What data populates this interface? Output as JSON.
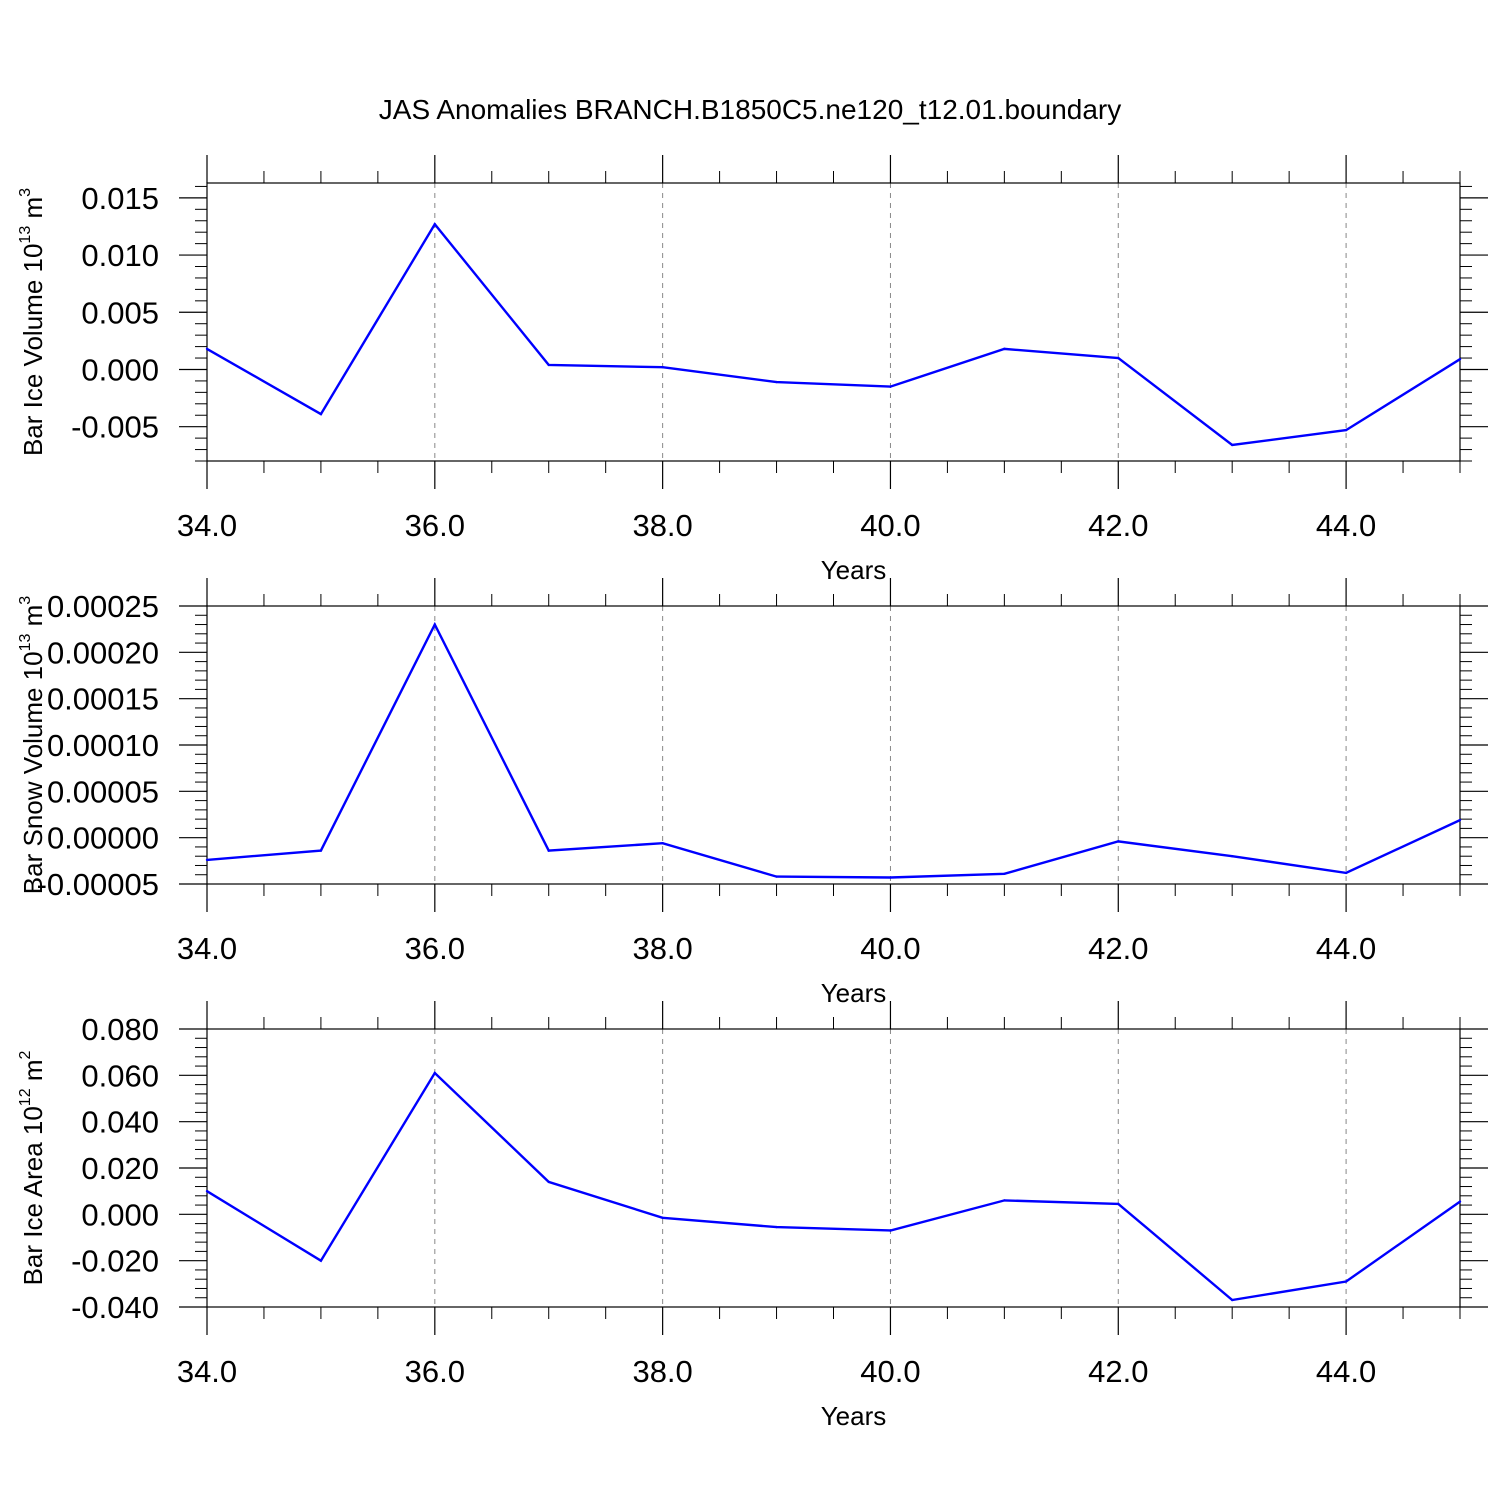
{
  "title": "JAS Anomalies BRANCH.B1850C5.ne120_t12.01.boundary",
  "chart_data": [
    {
      "type": "line",
      "title": "",
      "xlabel": "Years",
      "ylabel": {
        "main": "Bar Ice Volume 10",
        "sup": "13",
        "unit": " m",
        "unit_sup": "3"
      },
      "xlim": [
        34,
        45
      ],
      "ylim": [
        -0.008,
        0.0163
      ],
      "xticks": [
        "34.0",
        "36.0",
        "38.0",
        "40.0",
        "42.0",
        "44.0"
      ],
      "xtick_values": [
        34,
        36,
        38,
        40,
        42,
        44
      ],
      "yticks": [
        "0.015",
        "0.010",
        "0.005",
        "0.000",
        "-0.005"
      ],
      "ytick_values": [
        0.015,
        0.01,
        0.005,
        0.0,
        -0.005
      ],
      "y_minor_step": 0.001,
      "grid": "vertical dashed at major x ticks",
      "line_color": "#0000ff",
      "x": [
        34,
        35,
        36,
        37,
        38,
        39,
        40,
        41,
        42,
        43,
        44,
        45
      ],
      "y": [
        0.0018,
        -0.0039,
        0.0127,
        0.0004,
        0.0002,
        -0.0011,
        -0.0015,
        0.0018,
        0.001,
        -0.0066,
        -0.0053,
        0.0009
      ]
    },
    {
      "type": "line",
      "title": "",
      "xlabel": "Years",
      "ylabel": {
        "main": "Bar Snow Volume 10",
        "sup": "13",
        "unit": " m",
        "unit_sup": "3"
      },
      "xlim": [
        34,
        45
      ],
      "ylim": [
        -5e-05,
        0.00025
      ],
      "xticks": [
        "34.0",
        "36.0",
        "38.0",
        "40.0",
        "42.0",
        "44.0"
      ],
      "xtick_values": [
        34,
        36,
        38,
        40,
        42,
        44
      ],
      "yticks": [
        "0.00025",
        "0.00020",
        "0.00015",
        "0.00010",
        "0.00005",
        "0.00000",
        "-0.00005"
      ],
      "ytick_values": [
        0.00025,
        0.0002,
        0.00015,
        0.0001,
        5e-05,
        0.0,
        -5e-05
      ],
      "y_minor_step": 1e-05,
      "grid": "vertical dashed at major x ticks",
      "line_color": "#0000ff",
      "x": [
        34,
        35,
        36,
        37,
        38,
        39,
        40,
        41,
        42,
        43,
        44,
        45
      ],
      "y": [
        -2.4e-05,
        -1.4e-05,
        0.00023,
        -1.4e-05,
        -6e-06,
        -4.2e-05,
        -4.3e-05,
        -3.9e-05,
        -4e-06,
        -2e-05,
        -3.8e-05,
        1.9e-05
      ]
    },
    {
      "type": "line",
      "title": "",
      "xlabel": "Years",
      "ylabel": {
        "main": "Bar Ice Area 10",
        "sup": "12",
        "unit": " m",
        "unit_sup": "2"
      },
      "xlim": [
        34,
        45
      ],
      "ylim": [
        -0.04,
        0.08
      ],
      "xticks": [
        "34.0",
        "36.0",
        "38.0",
        "40.0",
        "42.0",
        "44.0"
      ],
      "xtick_values": [
        34,
        36,
        38,
        40,
        42,
        44
      ],
      "yticks": [
        "0.080",
        "0.060",
        "0.040",
        "0.020",
        "0.000",
        "-0.020",
        "-0.040"
      ],
      "ytick_values": [
        0.08,
        0.06,
        0.04,
        0.02,
        0.0,
        -0.02,
        -0.04
      ],
      "y_minor_step": 0.004,
      "grid": "vertical dashed at major x ticks",
      "line_color": "#0000ff",
      "x": [
        34,
        35,
        36,
        37,
        38,
        39,
        40,
        41,
        42,
        43,
        44,
        45
      ],
      "y": [
        0.01,
        -0.02,
        0.061,
        0.014,
        -0.0015,
        -0.0055,
        -0.007,
        0.006,
        0.0045,
        -0.037,
        -0.029,
        0.0055
      ]
    }
  ]
}
